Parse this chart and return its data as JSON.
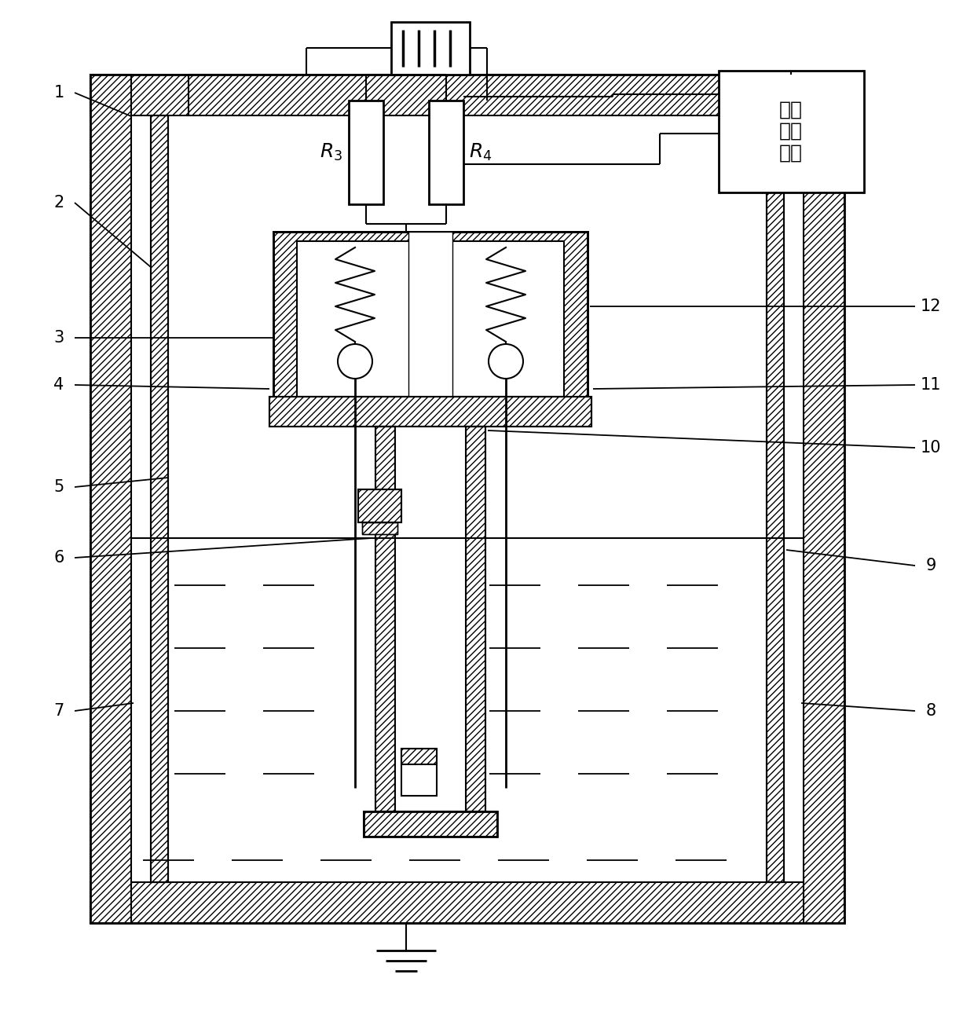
{
  "bg_color": "#ffffff",
  "lw": 1.5,
  "lw2": 2.0,
  "figsize": [
    12.4,
    13.01
  ],
  "dpi": 100,
  "ext_label": "外部\n测量\n系统"
}
